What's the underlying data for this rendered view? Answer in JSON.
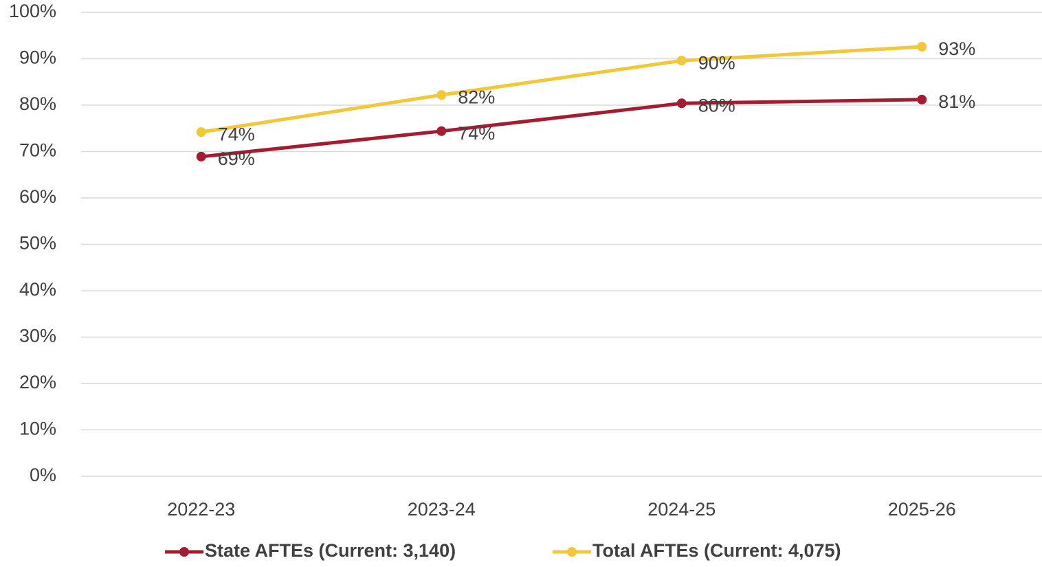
{
  "chart_data": {
    "type": "line",
    "categories": [
      "2022-23",
      "2023-24",
      "2024-25",
      "2025-26"
    ],
    "series": [
      {
        "name": "State AFTEs (Current: 3,140)",
        "color": "#a51c30",
        "values": [
          68.9,
          74.4,
          80.4,
          81.2
        ],
        "value_labels": [
          "69%",
          "74%",
          "80%",
          "81%"
        ]
      },
      {
        "name": "Total AFTEs (Current: 4,075)",
        "color": "#f2c73a",
        "values": [
          74.2,
          82.2,
          89.6,
          92.6
        ],
        "value_labels": [
          "74%",
          "82%",
          "90%",
          "93%"
        ]
      }
    ],
    "ylim": [
      0,
      100
    ],
    "yticks": [
      {
        "value": 0,
        "label": "0%"
      },
      {
        "value": 10,
        "label": "10%"
      },
      {
        "value": 20,
        "label": "20%"
      },
      {
        "value": 30,
        "label": "30%"
      },
      {
        "value": 40,
        "label": "40%"
      },
      {
        "value": 50,
        "label": "50%"
      },
      {
        "value": 60,
        "label": "60%"
      },
      {
        "value": 70,
        "label": "70%"
      },
      {
        "value": 80,
        "label": "80%"
      },
      {
        "value": 90,
        "label": "90%"
      },
      {
        "value": 100,
        "label": "100%"
      }
    ],
    "grid": true,
    "legend": "bottom"
  }
}
